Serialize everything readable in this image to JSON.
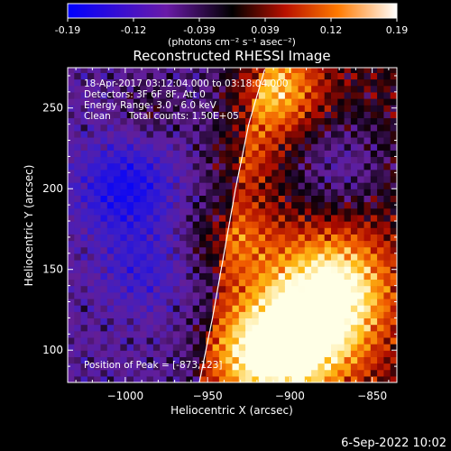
{
  "colorbar": {
    "tick_labels": [
      "-0.19",
      "-0.12",
      "-0.039",
      "0.039",
      "0.12",
      "0.19"
    ],
    "tick_values": [
      -0.19,
      -0.12,
      -0.039,
      0.039,
      0.12,
      0.19
    ],
    "range": [
      -0.19,
      0.19
    ],
    "unit_label": "(photons cm⁻² s⁻¹ asec⁻²)"
  },
  "chart_data": {
    "type": "heatmap",
    "title": "Reconstructed RHESSI Image",
    "xlabel": "Heliocentric X (arcsec)",
    "ylabel": "Heliocentric Y (arcsec)",
    "xlim": [
      -1035,
      -835
    ],
    "ylim": [
      80,
      275
    ],
    "x_ticks": [
      -1000,
      -950,
      -900,
      -850
    ],
    "x_tick_labels": [
      "−1000",
      "−950",
      "−900",
      "−850"
    ],
    "y_ticks": [
      100,
      150,
      200,
      250
    ],
    "y_tick_labels": [
      "100",
      "150",
      "200",
      "250"
    ],
    "annotations": [
      "18-Apr-2017 03:12:04.000 to 03:18:04.000",
      "Detectors: 3F 6F 8F, Att 0",
      "Energy Range: 3.0 - 6.0 keV",
      "Clean      Total counts: 1.50E+05"
    ],
    "peak_label": "Position of Peak = [-873,123]",
    "peak_position": [
      -873,
      123
    ],
    "limb_curve": [
      [
        -955,
        80
      ],
      [
        -947,
        120
      ],
      [
        -940,
        160
      ],
      [
        -933,
        200
      ],
      [
        -925,
        240
      ],
      [
        -915,
        275
      ]
    ],
    "blobs": [
      {
        "x": -895,
        "y": 108,
        "amp": 1.0,
        "r": 38
      },
      {
        "x": -872,
        "y": 140,
        "amp": 0.85,
        "r": 35
      },
      {
        "x": -920,
        "y": 95,
        "amp": 0.6,
        "r": 30
      },
      {
        "x": -910,
        "y": 262,
        "amp": 0.75,
        "r": 28
      },
      {
        "x": -935,
        "y": 170,
        "amp": 0.45,
        "r": 26
      },
      {
        "x": -930,
        "y": 220,
        "amp": 0.35,
        "r": 22
      },
      {
        "x": -985,
        "y": 250,
        "amp": 0.2,
        "r": 20
      },
      {
        "x": -1000,
        "y": 200,
        "amp": -0.55,
        "r": 28
      },
      {
        "x": -990,
        "y": 150,
        "amp": -0.3,
        "r": 25
      },
      {
        "x": -870,
        "y": 215,
        "amp": -0.35,
        "r": 30
      }
    ]
  },
  "footer": {
    "timestamp": "6-Sep-2022 10:02"
  }
}
